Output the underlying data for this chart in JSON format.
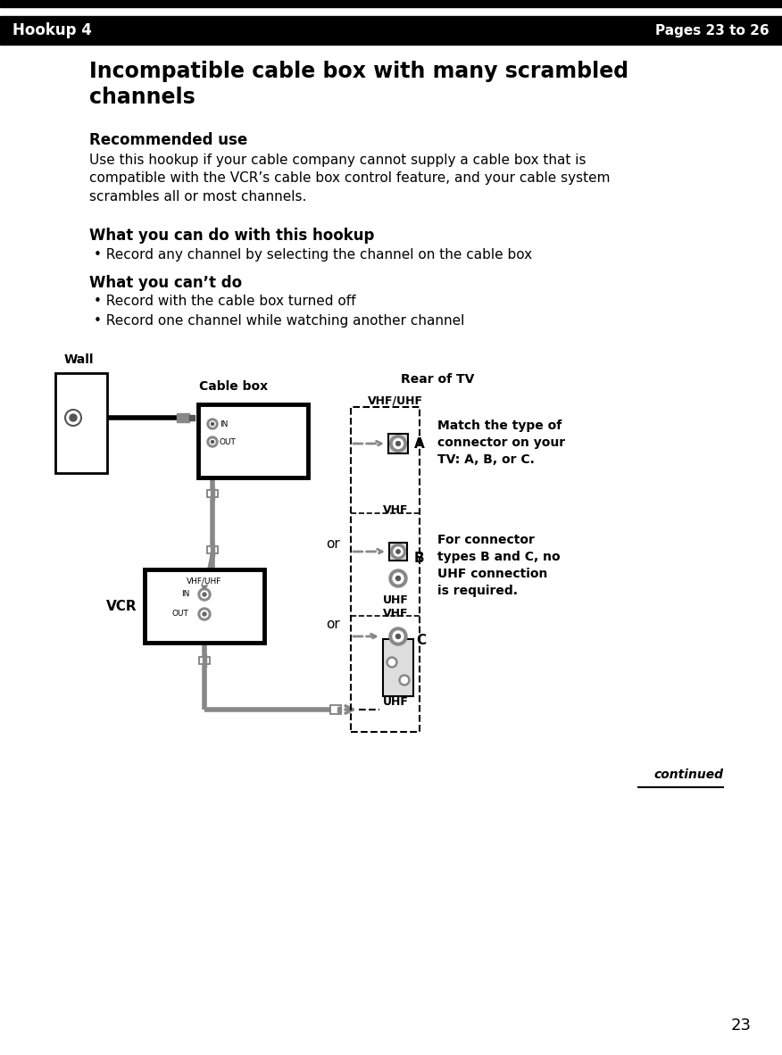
{
  "header_text": "Hookup 4",
  "header_right": "Pages 23 to 26",
  "title": "Incompatible cable box with many scrambled\nchannels",
  "rec_use_header": "Recommended use",
  "rec_use_body": "Use this hookup if your cable company cannot supply a cable box that is\ncompatible with the VCR’s cable box control feature, and your cable system\nscrambles all or most channels.",
  "can_do_header": "What you can do with this hookup",
  "can_do_items": [
    "Record any channel by selecting the channel on the cable box"
  ],
  "cant_do_header": "What you can’t do",
  "cant_do_items": [
    "Record with the cable box turned off",
    "Record one channel while watching another channel"
  ],
  "label_wall": "Wall",
  "label_cablebox": "Cable box",
  "label_reartv": "Rear of TV",
  "label_vcr": "VCR",
  "label_in": "IN",
  "label_out": "OUT",
  "label_vhfuhf": "VHF/UHF",
  "label_vhf": "VHF",
  "label_uhf": "UHF",
  "label_A": "A",
  "label_B": "B",
  "label_C": "C",
  "label_or": "or",
  "note_A": "Match the type of\nconnector on your\nTV: A, B, or C.",
  "note_B": "For connector\ntypes B and C, no\nUHF connection\nis required.",
  "continued": "continued",
  "page_number": "23",
  "bg_color": "#ffffff",
  "header_bg": "#000000",
  "header_fg": "#ffffff"
}
